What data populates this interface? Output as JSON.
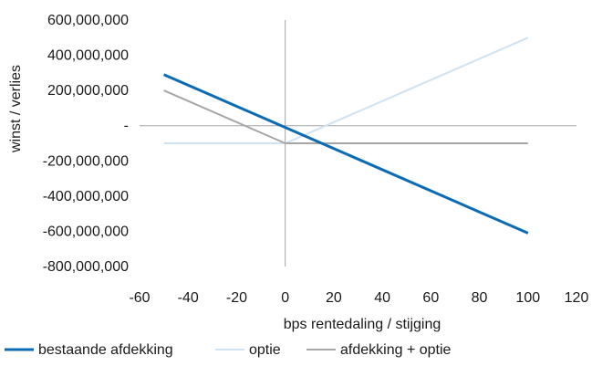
{
  "chart_data": {
    "type": "line",
    "title": "",
    "xlabel": "bps rentedaling / stijging",
    "ylabel": "winst / verlies",
    "xlim": [
      -60,
      120
    ],
    "ylim": [
      -800000000,
      600000000
    ],
    "x_ticks": [
      -60,
      -40,
      -20,
      0,
      20,
      40,
      60,
      80,
      100,
      120
    ],
    "y_ticks": [
      600000000,
      400000000,
      200000000,
      0,
      -200000000,
      -400000000,
      -600000000,
      -800000000
    ],
    "x_tick_labels": [
      "-60",
      "-40",
      "-20",
      "0",
      "20",
      "40",
      "60",
      "80",
      "100",
      "120"
    ],
    "y_tick_labels": [
      "600,000,000",
      "400,000,000",
      "200,000,000",
      "-",
      "-200,000,000",
      "-400,000,000",
      "-600,000,000",
      "-800,000,000"
    ],
    "grid": false,
    "legend_position": "bottom",
    "series": [
      {
        "name": "bestaande afdekking",
        "color": "#0b6bb5",
        "x": [
          -50,
          0,
          100
        ],
        "y": [
          290000000,
          -10000000,
          -610000000
        ]
      },
      {
        "name": "optie",
        "color": "#cfe2f3",
        "x": [
          -50,
          0,
          100
        ],
        "y": [
          -100000000,
          -100000000,
          500000000
        ]
      },
      {
        "name": "afdekking + optie",
        "color": "#a6a6a6",
        "x": [
          -50,
          0,
          100
        ],
        "y": [
          200000000,
          -100000000,
          -100000000
        ]
      }
    ]
  }
}
